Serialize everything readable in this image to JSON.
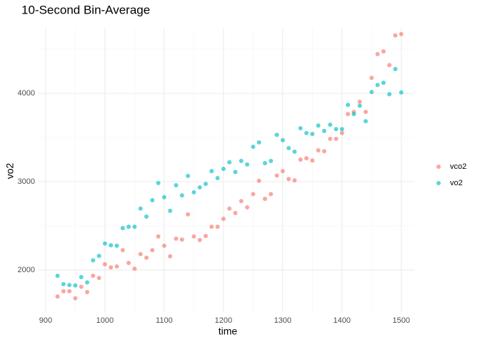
{
  "chart_data": {
    "type": "scatter",
    "title": "10-Second Bin-Average",
    "x_label": "time",
    "y_label": "vo2",
    "x": [
      920,
      930,
      940,
      950,
      960,
      970,
      980,
      990,
      1000,
      1010,
      1020,
      1030,
      1040,
      1050,
      1060,
      1070,
      1080,
      1090,
      1100,
      1110,
      1120,
      1130,
      1140,
      1150,
      1160,
      1170,
      1180,
      1190,
      1200,
      1210,
      1220,
      1230,
      1240,
      1250,
      1260,
      1270,
      1280,
      1290,
      1300,
      1310,
      1320,
      1330,
      1340,
      1350,
      1360,
      1370,
      1380,
      1390,
      1400,
      1410,
      1420,
      1430,
      1440,
      1450,
      1460,
      1470,
      1480,
      1490,
      1500
    ],
    "series": [
      {
        "name": "vco2",
        "color": "#F8766D",
        "values": [
          1700,
          1760,
          1760,
          1680,
          1810,
          1750,
          1935,
          1910,
          2065,
          2030,
          2040,
          2225,
          2080,
          2015,
          2180,
          2140,
          2225,
          2380,
          2275,
          2155,
          2355,
          2345,
          2630,
          2380,
          2340,
          2385,
          2490,
          2490,
          2580,
          2695,
          2645,
          2780,
          2710,
          2860,
          3010,
          2805,
          2860,
          3070,
          3120,
          3030,
          3015,
          3250,
          3265,
          3240,
          3355,
          3345,
          3485,
          3485,
          3550,
          3765,
          3790,
          3905,
          3790,
          4175,
          4445,
          4475,
          4320,
          4655,
          4670
        ]
      },
      {
        "name": "vo2",
        "color": "#00BFC4",
        "values": [
          1935,
          1840,
          1830,
          1825,
          1920,
          1860,
          2110,
          2160,
          2300,
          2280,
          2275,
          2475,
          2490,
          2490,
          2695,
          2605,
          2790,
          2985,
          2825,
          2670,
          2960,
          2845,
          3065,
          2880,
          2935,
          2975,
          3120,
          3040,
          3145,
          3220,
          3110,
          3235,
          3195,
          3395,
          3445,
          3210,
          3235,
          3530,
          3470,
          3380,
          3340,
          3605,
          3550,
          3540,
          3635,
          3575,
          3645,
          3595,
          3595,
          3870,
          3765,
          3860,
          3685,
          4015,
          4095,
          4120,
          3990,
          4275,
          4010
        ]
      }
    ],
    "xlim": [
      888,
      1522
    ],
    "ylim": [
      1524,
      4734
    ],
    "xticks": [
      900,
      1000,
      1100,
      1200,
      1300,
      1400,
      1500
    ],
    "yticks": [
      2000,
      3000,
      4000
    ],
    "grid": true,
    "minor_grid": true,
    "legend": "right"
  }
}
